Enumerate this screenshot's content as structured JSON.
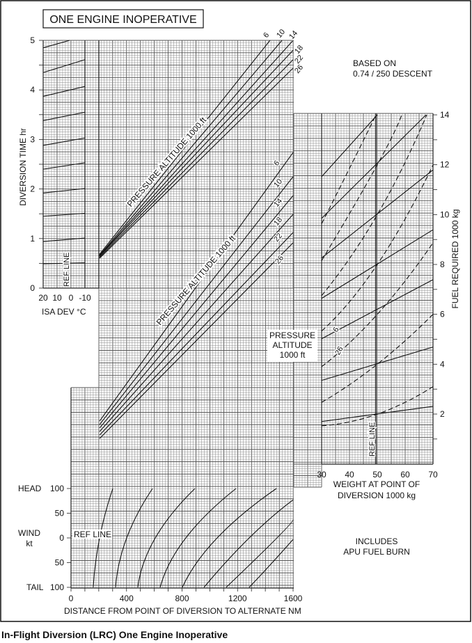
{
  "caption": "In-Flight Diversion (LRC) One Engine Inoperative",
  "chart_data": {
    "type": "line",
    "title": "ONE ENGINE INOPERATIVE",
    "notes": {
      "based_on": "BASED ON",
      "descent": "0.74 / 250 DESCENT",
      "includes": "INCLUDES",
      "apu": "APU FUEL BURN"
    },
    "time_panel": {
      "ylabel": "DIVERSION TIME  hr",
      "yticks": [
        "0",
        "1",
        "2",
        "3",
        "4",
        "5"
      ],
      "ylim": [
        0,
        5
      ],
      "isa_label": "ISA DEV °C",
      "isa_ticks": [
        "20",
        "10",
        "0",
        "-10"
      ],
      "ref_line": "REF LINE",
      "altitude_label": "PRESSURE ALTITUDE  1000 ft",
      "isa_lines": [
        [
          [
            20,
            4.85
          ],
          [
            1,
            5.0
          ]
        ],
        [
          [
            20,
            4.35
          ],
          [
            -10,
            4.61
          ]
        ],
        [
          [
            20,
            3.87
          ],
          [
            -10,
            4.07
          ]
        ],
        [
          [
            20,
            3.38
          ],
          [
            -10,
            3.55
          ]
        ],
        [
          [
            20,
            2.88
          ],
          [
            -10,
            3.03
          ]
        ],
        [
          [
            20,
            2.4
          ],
          [
            -10,
            2.53
          ]
        ],
        [
          [
            20,
            1.92
          ],
          [
            -10,
            2.01
          ]
        ],
        [
          [
            20,
            1.45
          ],
          [
            -10,
            1.51
          ]
        ],
        [
          [
            20,
            0.94
          ],
          [
            -10,
            1.01
          ]
        ],
        [
          [
            20,
            0.49
          ],
          [
            -10,
            0.51
          ]
        ]
      ],
      "altitude_lines": [
        {
          "name": "6",
          "points": [
            [
              205,
              0.68
            ],
            [
              1434,
              5.0
            ]
          ]
        },
        {
          "name": "10",
          "points": [
            [
              205,
              0.66
            ],
            [
              1520,
              5.0
            ]
          ]
        },
        {
          "name": "14",
          "points": [
            [
              205,
              0.65
            ],
            [
              1600,
              5.0
            ]
          ]
        },
        {
          "name": "18",
          "points": [
            [
              205,
              0.64
            ],
            [
              1600,
              4.8
            ]
          ]
        },
        {
          "name": "22",
          "points": [
            [
              205,
              0.62
            ],
            [
              1600,
              4.61
            ]
          ]
        },
        {
          "name": "26",
          "points": [
            [
              205,
              0.6
            ],
            [
              1600,
              4.44
            ]
          ]
        }
      ]
    },
    "fuel_distance_panel": {
      "altitude_label": "PRESSURE ALTITUDE  1000 ft",
      "altitude_lines": [
        {
          "name": "6",
          "points": [
            [
              206,
              1.72
            ],
            [
              1600,
              12.49
            ]
          ]
        },
        {
          "name": "10",
          "points": [
            [
              206,
              1.58
            ],
            [
              1600,
              11.52
            ]
          ]
        },
        {
          "name": "14",
          "points": [
            [
              206,
              1.44
            ],
            [
              1600,
              10.76
            ]
          ]
        },
        {
          "name": "18",
          "points": [
            [
              206,
              1.3
            ],
            [
              1600,
              10.01
            ]
          ]
        },
        {
          "name": "22",
          "points": [
            [
              206,
              1.16
            ],
            [
              1600,
              9.28
            ]
          ]
        },
        {
          "name": "26",
          "points": [
            [
              206,
              1.02
            ],
            [
              1600,
              8.87
            ]
          ]
        }
      ]
    },
    "fuel_panel": {
      "ylabel": "FUEL REQUIRED  1000 kg",
      "yticks": [
        "2",
        "4",
        "6",
        "8",
        "10",
        "12",
        "14"
      ],
      "ylim": [
        0,
        14
      ],
      "xlabel_line1": "WEIGHT AT POINT OF",
      "xlabel_line2": "DIVERSION   1000 kg",
      "xticks": [
        "30",
        "40",
        "50",
        "60",
        "70"
      ],
      "xlim": [
        30,
        70
      ],
      "ref_line": "REF LINE",
      "ref_weight": 50,
      "altitude_box": {
        "line1": "PRESSURE",
        "line2": "ALTITUDE",
        "line3": "1000 ft"
      },
      "series_labels": {
        "solid": "6",
        "dashed": "26"
      },
      "solid_lines_alt_6": [
        [
          [
            30,
            11.52
          ],
          [
            50,
            14
          ]
        ],
        [
          [
            30,
            9.85
          ],
          [
            67.5,
            14
          ]
        ],
        [
          [
            30,
            8.26
          ],
          [
            70,
            11.79
          ]
        ],
        [
          [
            30,
            6.64
          ],
          [
            70,
            9.39
          ]
        ],
        [
          [
            30,
            5.02
          ],
          [
            70,
            7.39
          ]
        ],
        [
          [
            30,
            3.35
          ],
          [
            70,
            4.69
          ]
        ],
        [
          [
            30,
            1.7
          ],
          [
            70,
            2.31
          ]
        ]
      ],
      "dashed_lines_alt_26": [
        [
          [
            30,
            9.63
          ],
          [
            42,
            12.3
          ],
          [
            49.5,
            14
          ]
        ],
        [
          [
            30,
            8.15
          ],
          [
            50,
            12
          ],
          [
            58.75,
            14
          ]
        ],
        [
          [
            30,
            6.75
          ],
          [
            50,
            10
          ],
          [
            67.75,
            14
          ]
        ],
        [
          [
            30,
            5.33
          ],
          [
            50,
            8
          ],
          [
            70,
            11.99
          ]
        ],
        [
          [
            30,
            3.9
          ],
          [
            50,
            6
          ],
          [
            70,
            8.87
          ]
        ],
        [
          [
            30,
            2.47
          ],
          [
            50,
            4
          ],
          [
            70,
            6.0
          ]
        ],
        [
          [
            30,
            1.53
          ],
          [
            50,
            2
          ],
          [
            70,
            3.1
          ]
        ]
      ]
    },
    "wind_panel": {
      "label_head": "HEAD",
      "label_wind": "WIND",
      "label_unit": "kt",
      "label_tail": "TAIL",
      "yticks": [
        "100",
        "50",
        "0",
        "50",
        "100"
      ],
      "ref_line": "REF LINE",
      "xlabel": "DISTANCE FROM POINT OF DIVERSION TO ALTERNATE  NM",
      "xticks": [
        "0",
        "400",
        "800",
        "1200",
        "1600"
      ],
      "xlim": [
        0,
        1600
      ],
      "ylim": [
        -100,
        100
      ],
      "curves": [
        [
          [
            160,
            -100
          ],
          [
            206,
            0
          ],
          [
            301,
            100
          ]
        ],
        [
          [
            321,
            -100
          ],
          [
            401,
            0
          ],
          [
            587,
            100
          ]
        ],
        [
          [
            481,
            -100
          ],
          [
            607,
            0
          ],
          [
            893,
            100
          ]
        ],
        [
          [
            642,
            -100
          ],
          [
            827,
            0
          ],
          [
            1189,
            100
          ]
        ],
        [
          [
            802,
            -100
          ],
          [
            1053,
            0
          ],
          [
            1480,
            100
          ]
        ],
        [
          [
            958,
            -100
          ],
          [
            1284,
            0
          ],
          [
            1600,
            77
          ]
        ],
        [
          [
            1118,
            -100
          ],
          [
            1484,
            0
          ],
          [
            1600,
            37
          ]
        ],
        [
          [
            1284,
            -100
          ],
          [
            1450,
            -50
          ],
          [
            1600,
            -3
          ]
        ]
      ]
    }
  }
}
